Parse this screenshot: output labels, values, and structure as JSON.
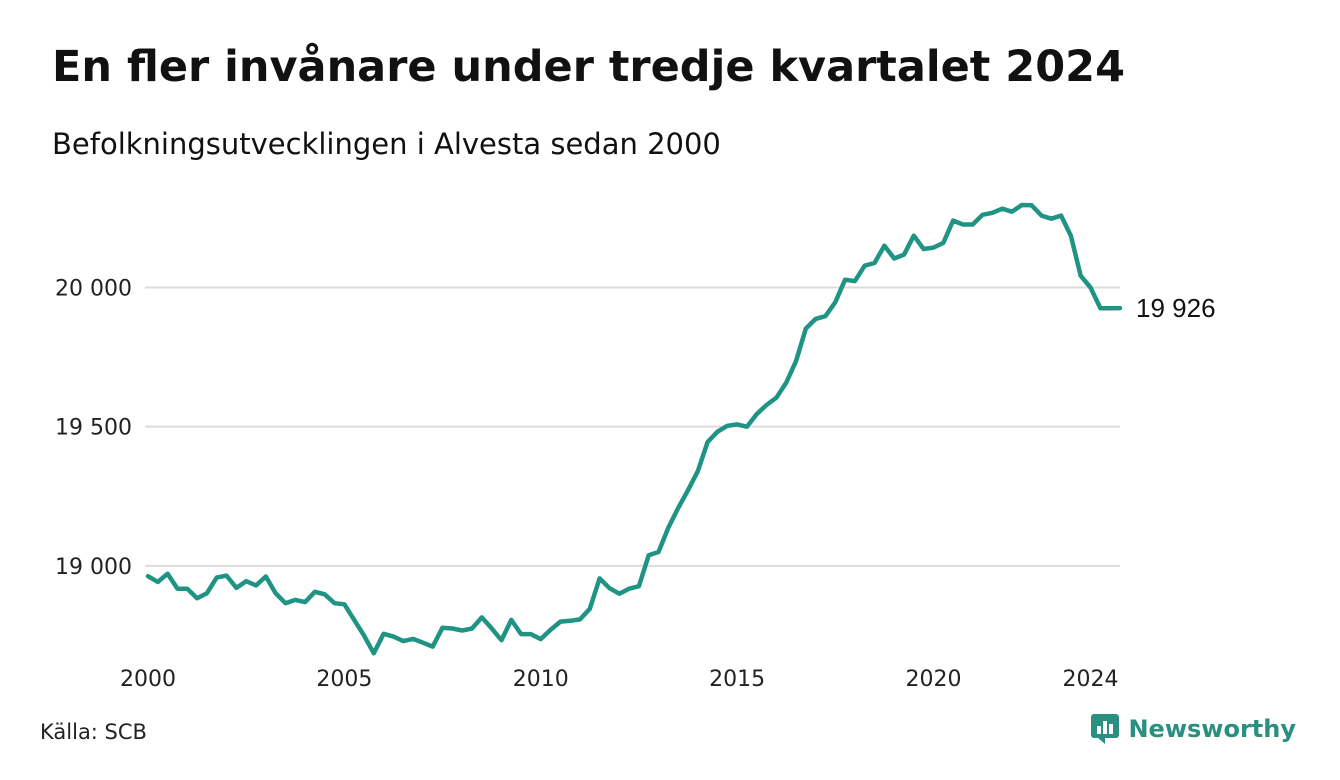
{
  "header": {
    "title": "En fler invånare under tredje kvartalet 2024",
    "subtitle": "Befolkningsutvecklingen i Alvesta sedan 2000"
  },
  "footer": {
    "source": "Källa: SCB",
    "brand": "Newsworthy"
  },
  "colors": {
    "line": "#1f9484",
    "grid": "#dcdcdc",
    "brand": "#2a8f80"
  },
  "icons": {
    "brand_logo": "chart-bubble-icon"
  },
  "chart_data": {
    "type": "line",
    "title": "En fler invånare under tredje kvartalet 2024",
    "subtitle": "Befolkningsutvecklingen i Alvesta sedan 2000",
    "xlabel": "",
    "ylabel": "",
    "xlim": [
      2000,
      2024.75
    ],
    "ylim": [
      18680,
      20350
    ],
    "grid": true,
    "legend": "none",
    "x_ticks": [
      2000,
      2005,
      2010,
      2015,
      2020,
      2024
    ],
    "x_tick_labels": [
      "2000",
      "2005",
      "2010",
      "2015",
      "2020",
      "2024"
    ],
    "y_ticks": [
      19000,
      19500,
      20000
    ],
    "y_tick_labels": [
      "19 000",
      "19 500",
      "20 000"
    ],
    "end_label": "19 926",
    "series": [
      {
        "x": [
          2000.0,
          2000.25,
          2000.5,
          2000.75,
          2001.0,
          2001.25,
          2001.5,
          2001.75,
          2002.0,
          2002.25,
          2002.5,
          2002.75,
          2003.0,
          2003.25,
          2003.5,
          2003.75,
          2004.0,
          2004.25,
          2004.5,
          2004.75,
          2005.0,
          2005.25,
          2005.5,
          2005.75,
          2006.0,
          2006.25,
          2006.5,
          2006.75,
          2007.0,
          2007.25,
          2007.5,
          2007.75,
          2008.0,
          2008.25,
          2008.5,
          2008.75,
          2009.0,
          2009.25,
          2009.5,
          2009.75,
          2010.0,
          2010.25,
          2010.5,
          2010.75,
          2011.0,
          2011.25,
          2011.5,
          2011.75,
          2012.0,
          2012.25,
          2012.5,
          2012.75,
          2013.0,
          2013.25,
          2013.5,
          2013.75,
          2014.0,
          2014.25,
          2014.5,
          2014.75,
          2015.0,
          2015.25,
          2015.5,
          2015.75,
          2016.0,
          2016.25,
          2016.5,
          2016.75,
          2017.0,
          2017.25,
          2017.5,
          2017.75,
          2018.0,
          2018.25,
          2018.5,
          2018.75,
          2019.0,
          2019.25,
          2019.5,
          2019.75,
          2020.0,
          2020.25,
          2020.5,
          2020.75,
          2021.0,
          2021.25,
          2021.5,
          2021.75,
          2022.0,
          2022.25,
          2022.5,
          2022.75,
          2023.0,
          2023.25,
          2023.5,
          2023.75,
          2024.0,
          2024.25,
          2024.5,
          2024.75
        ],
        "values": [
          18963,
          18942,
          18972,
          18918,
          18918,
          18884,
          18902,
          18958,
          18965,
          18921,
          18945,
          18930,
          18962,
          18902,
          18866,
          18878,
          18870,
          18907,
          18898,
          18866,
          18862,
          18806,
          18750,
          18686,
          18756,
          18746,
          18730,
          18738,
          18724,
          18710,
          18778,
          18775,
          18768,
          18775,
          18815,
          18776,
          18733,
          18806,
          18755,
          18755,
          18737,
          18770,
          18800,
          18803,
          18808,
          18846,
          18955,
          18920,
          18900,
          18918,
          18927,
          19038,
          19050,
          19138,
          19208,
          19272,
          19340,
          19445,
          19482,
          19503,
          19508,
          19500,
          19545,
          19578,
          19604,
          19658,
          19735,
          19852,
          19887,
          19897,
          19947,
          20028,
          20023,
          20078,
          20088,
          20150,
          20104,
          20118,
          20186,
          20138,
          20143,
          20160,
          20240,
          20226,
          20226,
          20261,
          20268,
          20283,
          20272,
          20296,
          20295,
          20258,
          20247,
          20258,
          20185,
          20042,
          20000,
          19925,
          19925,
          19926
        ]
      }
    ]
  }
}
